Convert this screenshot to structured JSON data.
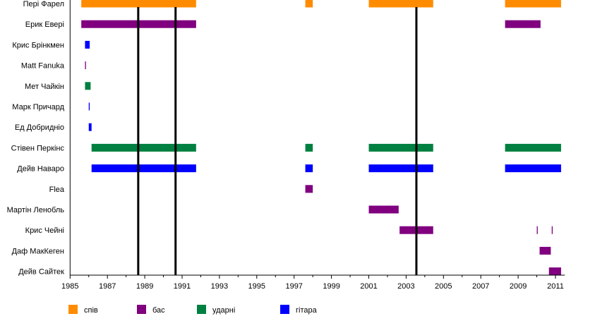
{
  "chart_data": {
    "type": "timeline",
    "title": "",
    "xlabel": "",
    "ylabel": "",
    "xlim": [
      1985,
      2011.5
    ],
    "x_ticks": [
      1985,
      1987,
      1989,
      1991,
      1993,
      1995,
      1997,
      1999,
      2001,
      2003,
      2005,
      2007,
      2009,
      2011
    ],
    "grid": false,
    "legend_placement": "bottom",
    "roles": [
      {
        "key": "vocals",
        "label": "спів",
        "color": "#FF8C00"
      },
      {
        "key": "bass",
        "label": "бас",
        "color": "#800080"
      },
      {
        "key": "drums",
        "label": "ударні",
        "color": "#008040"
      },
      {
        "key": "guitar",
        "label": "гітара",
        "color": "#0000FF"
      }
    ],
    "vertical_markers": [
      1988.65,
      1990.65,
      2003.55
    ],
    "members": [
      {
        "name": "Пері Фарел",
        "role": "vocals",
        "periods": [
          [
            1985.6,
            1991.75
          ],
          [
            1997.6,
            1998.0
          ],
          [
            2001.0,
            2004.45
          ],
          [
            2008.3,
            2011.3
          ]
        ]
      },
      {
        "name": "Ерик Евері",
        "role": "bass",
        "periods": [
          [
            1985.6,
            1991.75
          ],
          [
            2008.3,
            2010.2
          ]
        ]
      },
      {
        "name": "Крис Брінкмен",
        "role": "guitar",
        "periods": [
          [
            1985.8,
            1986.05
          ]
        ]
      },
      {
        "name": "Matt Fanuka",
        "role": "bass",
        "periods": [
          [
            1985.8,
            1985.85
          ]
        ]
      },
      {
        "name": "Мет Чайкін",
        "role": "drums",
        "periods": [
          [
            1985.8,
            1986.1
          ]
        ]
      },
      {
        "name": "Марк Причард",
        "role": "guitar",
        "periods": [
          [
            1986.0,
            1986.05
          ]
        ]
      },
      {
        "name": "Ед Добриднio",
        "role": "guitar",
        "periods": [
          [
            1986.0,
            1986.15
          ]
        ]
      },
      {
        "name": "Стівен Перкінс",
        "role": "drums",
        "periods": [
          [
            1986.15,
            1991.75
          ],
          [
            1997.6,
            1998.0
          ],
          [
            2001.0,
            2004.45
          ],
          [
            2008.3,
            2011.3
          ]
        ]
      },
      {
        "name": "Дейв Наваро",
        "role": "guitar",
        "periods": [
          [
            1986.15,
            1991.75
          ],
          [
            1997.6,
            1998.0
          ],
          [
            2001.0,
            2004.45
          ],
          [
            2008.3,
            2011.3
          ]
        ]
      },
      {
        "name": "Flea",
        "role": "bass",
        "periods": [
          [
            1997.6,
            1998.0
          ]
        ]
      },
      {
        "name": "Мартін Ленобль",
        "role": "bass",
        "periods": [
          [
            2001.0,
            2002.6
          ]
        ]
      },
      {
        "name": "Крис Чейні",
        "role": "bass",
        "periods": [
          [
            2002.65,
            2004.45
          ],
          [
            2010.0,
            2010.05
          ],
          [
            2010.8,
            2010.85
          ]
        ]
      },
      {
        "name": "Даф МакКеген",
        "role": "bass",
        "periods": [
          [
            2010.15,
            2010.75
          ]
        ]
      },
      {
        "name": "Дейв Сайтек",
        "role": "bass",
        "periods": [
          [
            2010.65,
            2011.3
          ]
        ]
      }
    ]
  }
}
